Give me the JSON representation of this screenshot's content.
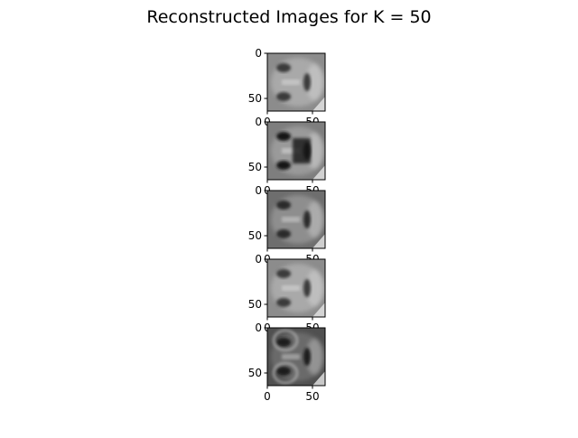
{
  "chart_data": {
    "type": "image_grid",
    "title": "Reconstructed Images for K = 50",
    "panel_count": 5,
    "image_size": [
      64,
      64
    ],
    "x_ticks": [
      "0",
      "50"
    ],
    "y_ticks": [
      "0",
      "50"
    ],
    "colormap": "gray",
    "panels": [
      {
        "orientation": "rotated-90",
        "tone": "light-gray"
      },
      {
        "orientation": "rotated-90",
        "tone": "gray-dark-features"
      },
      {
        "orientation": "rotated-90",
        "tone": "mid-gray"
      },
      {
        "orientation": "rotated-90",
        "tone": "light-gray"
      },
      {
        "orientation": "rotated-90",
        "tone": "dark-gray-glasses"
      }
    ]
  }
}
